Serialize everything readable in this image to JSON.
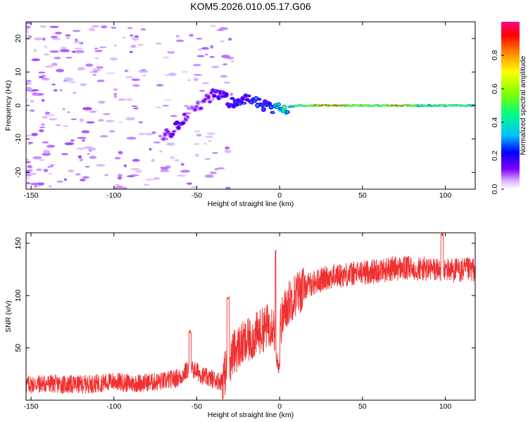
{
  "chart_data": [
    {
      "type": "heatmap",
      "title": "KOM5.2026.010.05.17.G06",
      "xlabel": "Height of straight line (km)",
      "ylabel": "Frequency (Hz)",
      "xlim": [
        -153,
        118
      ],
      "ylim": [
        -25,
        25
      ],
      "xticks": [
        -150,
        -100,
        -50,
        0,
        50,
        100
      ],
      "yticks": [
        -20,
        -10,
        0,
        10,
        20
      ],
      "colorbar": {
        "label": "Normalized spectral amplitude",
        "range": [
          0,
          1
        ],
        "ticks": [
          0.0,
          0.2,
          0.4,
          0.6,
          0.8
        ],
        "colors": [
          "#ffffff",
          "#d9b3ff",
          "#8000ff",
          "#0000ff",
          "#00c0ff",
          "#00ff80",
          "#80ff00",
          "#ffff00",
          "#ff8000",
          "#ff0000",
          "#ff0080"
        ]
      },
      "ridge": [
        {
          "x": -70,
          "y": -9,
          "amp": 0.12
        },
        {
          "x": -65,
          "y": -8,
          "amp": 0.15
        },
        {
          "x": -60,
          "y": -5,
          "amp": 0.2
        },
        {
          "x": -55,
          "y": -2,
          "amp": 0.12
        },
        {
          "x": -45,
          "y": 1,
          "amp": 0.12
        },
        {
          "x": -38,
          "y": 4,
          "amp": 0.18
        },
        {
          "x": -30,
          "y": 1,
          "amp": 0.22
        },
        {
          "x": -20,
          "y": 2,
          "amp": 0.25
        },
        {
          "x": -10,
          "y": 0,
          "amp": 0.3
        },
        {
          "x": -5,
          "y": -1,
          "amp": 0.3
        },
        {
          "x": 0,
          "y": -1,
          "amp": 0.45
        },
        {
          "x": 10,
          "y": 0,
          "amp": 0.55
        },
        {
          "x": 20,
          "y": 0,
          "amp": 0.75
        },
        {
          "x": 35,
          "y": 0,
          "amp": 0.85
        },
        {
          "x": 55,
          "y": 0,
          "amp": 0.55
        },
        {
          "x": 70,
          "y": 0,
          "amp": 0.95
        },
        {
          "x": 85,
          "y": 0,
          "amp": 0.5
        },
        {
          "x": 100,
          "y": 0,
          "amp": 0.55
        },
        {
          "x": 118,
          "y": 0,
          "amp": 0.6
        }
      ]
    },
    {
      "type": "line",
      "xlabel": "Height of straight line (km)",
      "ylabel": "SNR (v/v)",
      "xlim": [
        -153,
        118
      ],
      "ylim": [
        0,
        160
      ],
      "xticks": [
        -150,
        -100,
        -50,
        0,
        50,
        100
      ],
      "yticks": [
        50,
        100,
        150
      ],
      "series": [
        {
          "color": "#f03030",
          "x": [
            -153,
            -140,
            -130,
            -120,
            -110,
            -100,
            -90,
            -80,
            -70,
            -60,
            -55,
            -50,
            -45,
            -40,
            -35,
            -32,
            -28,
            -24,
            -20,
            -16,
            -12,
            -8,
            -4,
            -1,
            0,
            3,
            6,
            10,
            15,
            20,
            30,
            40,
            50,
            60,
            70,
            80,
            90,
            100,
            110,
            118
          ],
          "y": [
            15,
            16,
            15,
            15,
            16,
            18,
            16,
            17,
            18,
            22,
            30,
            28,
            22,
            20,
            18,
            30,
            45,
            52,
            55,
            60,
            65,
            70,
            75,
            40,
            70,
            85,
            95,
            102,
            108,
            112,
            118,
            120,
            122,
            124,
            126,
            126,
            125,
            125,
            124,
            125
          ]
        }
      ],
      "peaks": [
        {
          "x": -54,
          "y": 67
        },
        {
          "x": -31,
          "y": 99
        },
        {
          "x": -2,
          "y": 145
        },
        {
          "x": 98,
          "y": 160
        }
      ]
    }
  ]
}
